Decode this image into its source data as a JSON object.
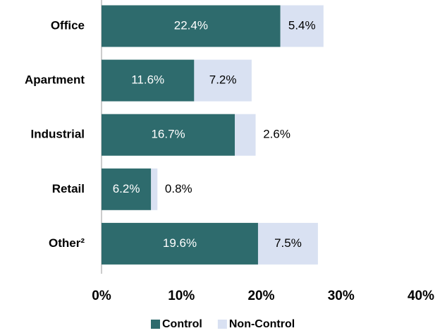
{
  "chart_data": {
    "type": "stacked-horizontal-bar",
    "categories": [
      "Office",
      "Apartment",
      "Industrial",
      "Retail",
      "Other²"
    ],
    "series": [
      {
        "name": "Control",
        "color": "#2e6b6d",
        "values": [
          22.4,
          11.6,
          16.7,
          6.2,
          19.6
        ],
        "value_labels": [
          "22.4%",
          "11.6%",
          "16.7%",
          "6.2%",
          "19.6%"
        ]
      },
      {
        "name": "Non-Control",
        "color": "#d9e1f2",
        "values": [
          5.4,
          7.2,
          2.6,
          0.8,
          7.5
        ],
        "value_labels": [
          "5.4%",
          "7.2%",
          "2.6%",
          "0.8%",
          "7.5%"
        ]
      }
    ],
    "xlim": [
      0,
      40
    ],
    "xticks": [
      {
        "value": 0,
        "label": "0%"
      },
      {
        "value": 10,
        "label": "10%"
      },
      {
        "value": 20,
        "label": "20%"
      },
      {
        "value": 30,
        "label": "30%"
      },
      {
        "value": 40,
        "label": "40%"
      }
    ],
    "legend": "bottom",
    "grid": false
  }
}
